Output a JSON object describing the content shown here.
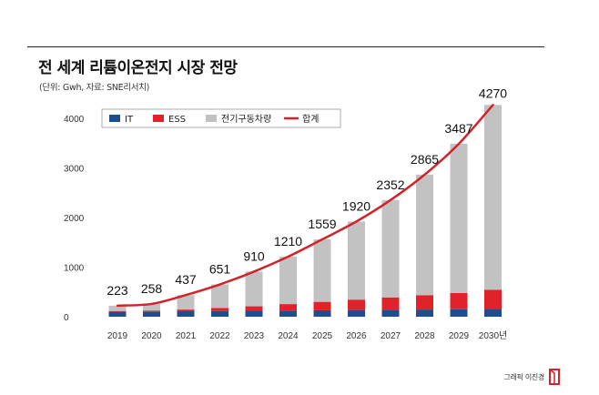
{
  "header": {
    "title": "전 세계 리튬이온전지 시장 전망",
    "subtitle": "(단위: Gwh, 자료: SNE리서치)"
  },
  "credit": "그래픽 이진경",
  "chart_data": {
    "type": "bar",
    "stacked": true,
    "categories": [
      "2019",
      "2020",
      "2021",
      "2022",
      "2023",
      "2024",
      "2025",
      "2026",
      "2027",
      "2028",
      "2029",
      "2030년"
    ],
    "series": [
      {
        "name": "IT",
        "color": "#1f4e8c",
        "values": [
          100,
          105,
          110,
          115,
          120,
          125,
          130,
          135,
          140,
          145,
          150,
          155
        ]
      },
      {
        "name": "ESS",
        "color": "#e0222a",
        "values": [
          15,
          20,
          35,
          60,
          90,
          130,
          170,
          210,
          250,
          290,
          330,
          390
        ]
      },
      {
        "name": "전기구동차량",
        "color": "#c2c2c2",
        "values": [
          108,
          133,
          292,
          476,
          700,
          955,
          1259,
          1575,
          1962,
          2430,
          3007,
          3725
        ]
      }
    ],
    "total": {
      "name": "합계",
      "color": "#d0232a",
      "values": [
        223,
        258,
        437,
        651,
        910,
        1210,
        1559,
        1920,
        2352,
        2865,
        3487,
        4270
      ]
    },
    "yticks": [
      0,
      1000,
      2000,
      3000,
      4000
    ],
    "ylim": [
      0,
      4400
    ],
    "legend_position": "top-left",
    "grid": false
  }
}
